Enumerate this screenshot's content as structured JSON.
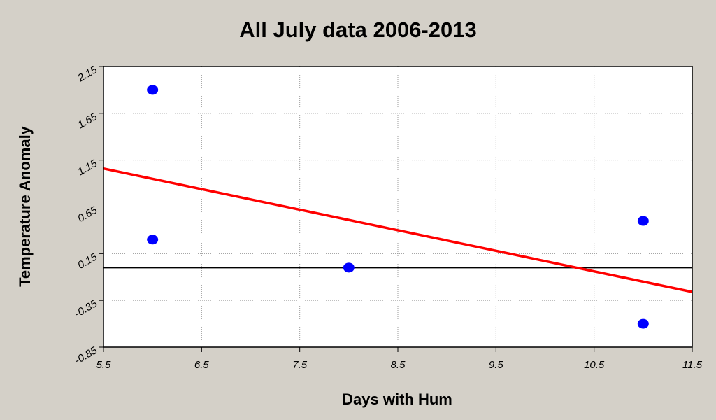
{
  "chart_data": {
    "type": "scatter",
    "title": "All July data 2006-2013",
    "xlabel": "Days with Hum",
    "ylabel": "Temperature Anomaly",
    "xlim": [
      5.5,
      11.5
    ],
    "xticks": [
      5.5,
      6.5,
      7.5,
      8.5,
      9.5,
      10.5,
      11.5
    ],
    "ylim": [
      -0.85,
      2.15
    ],
    "yticks": [
      2.15,
      1.65,
      1.15,
      0.65,
      0.15,
      -0.35,
      -0.85
    ],
    "grid": true,
    "points": {
      "color": "#0000ff",
      "x": [
        6,
        6,
        8,
        11,
        11
      ],
      "values": [
        1.9,
        0.3,
        0.0,
        0.5,
        -0.6
      ]
    },
    "trend": {
      "color": "#ff0000",
      "x": [
        5.5,
        11.5
      ],
      "values": [
        1.06,
        -0.26
      ]
    },
    "hline": 0
  }
}
